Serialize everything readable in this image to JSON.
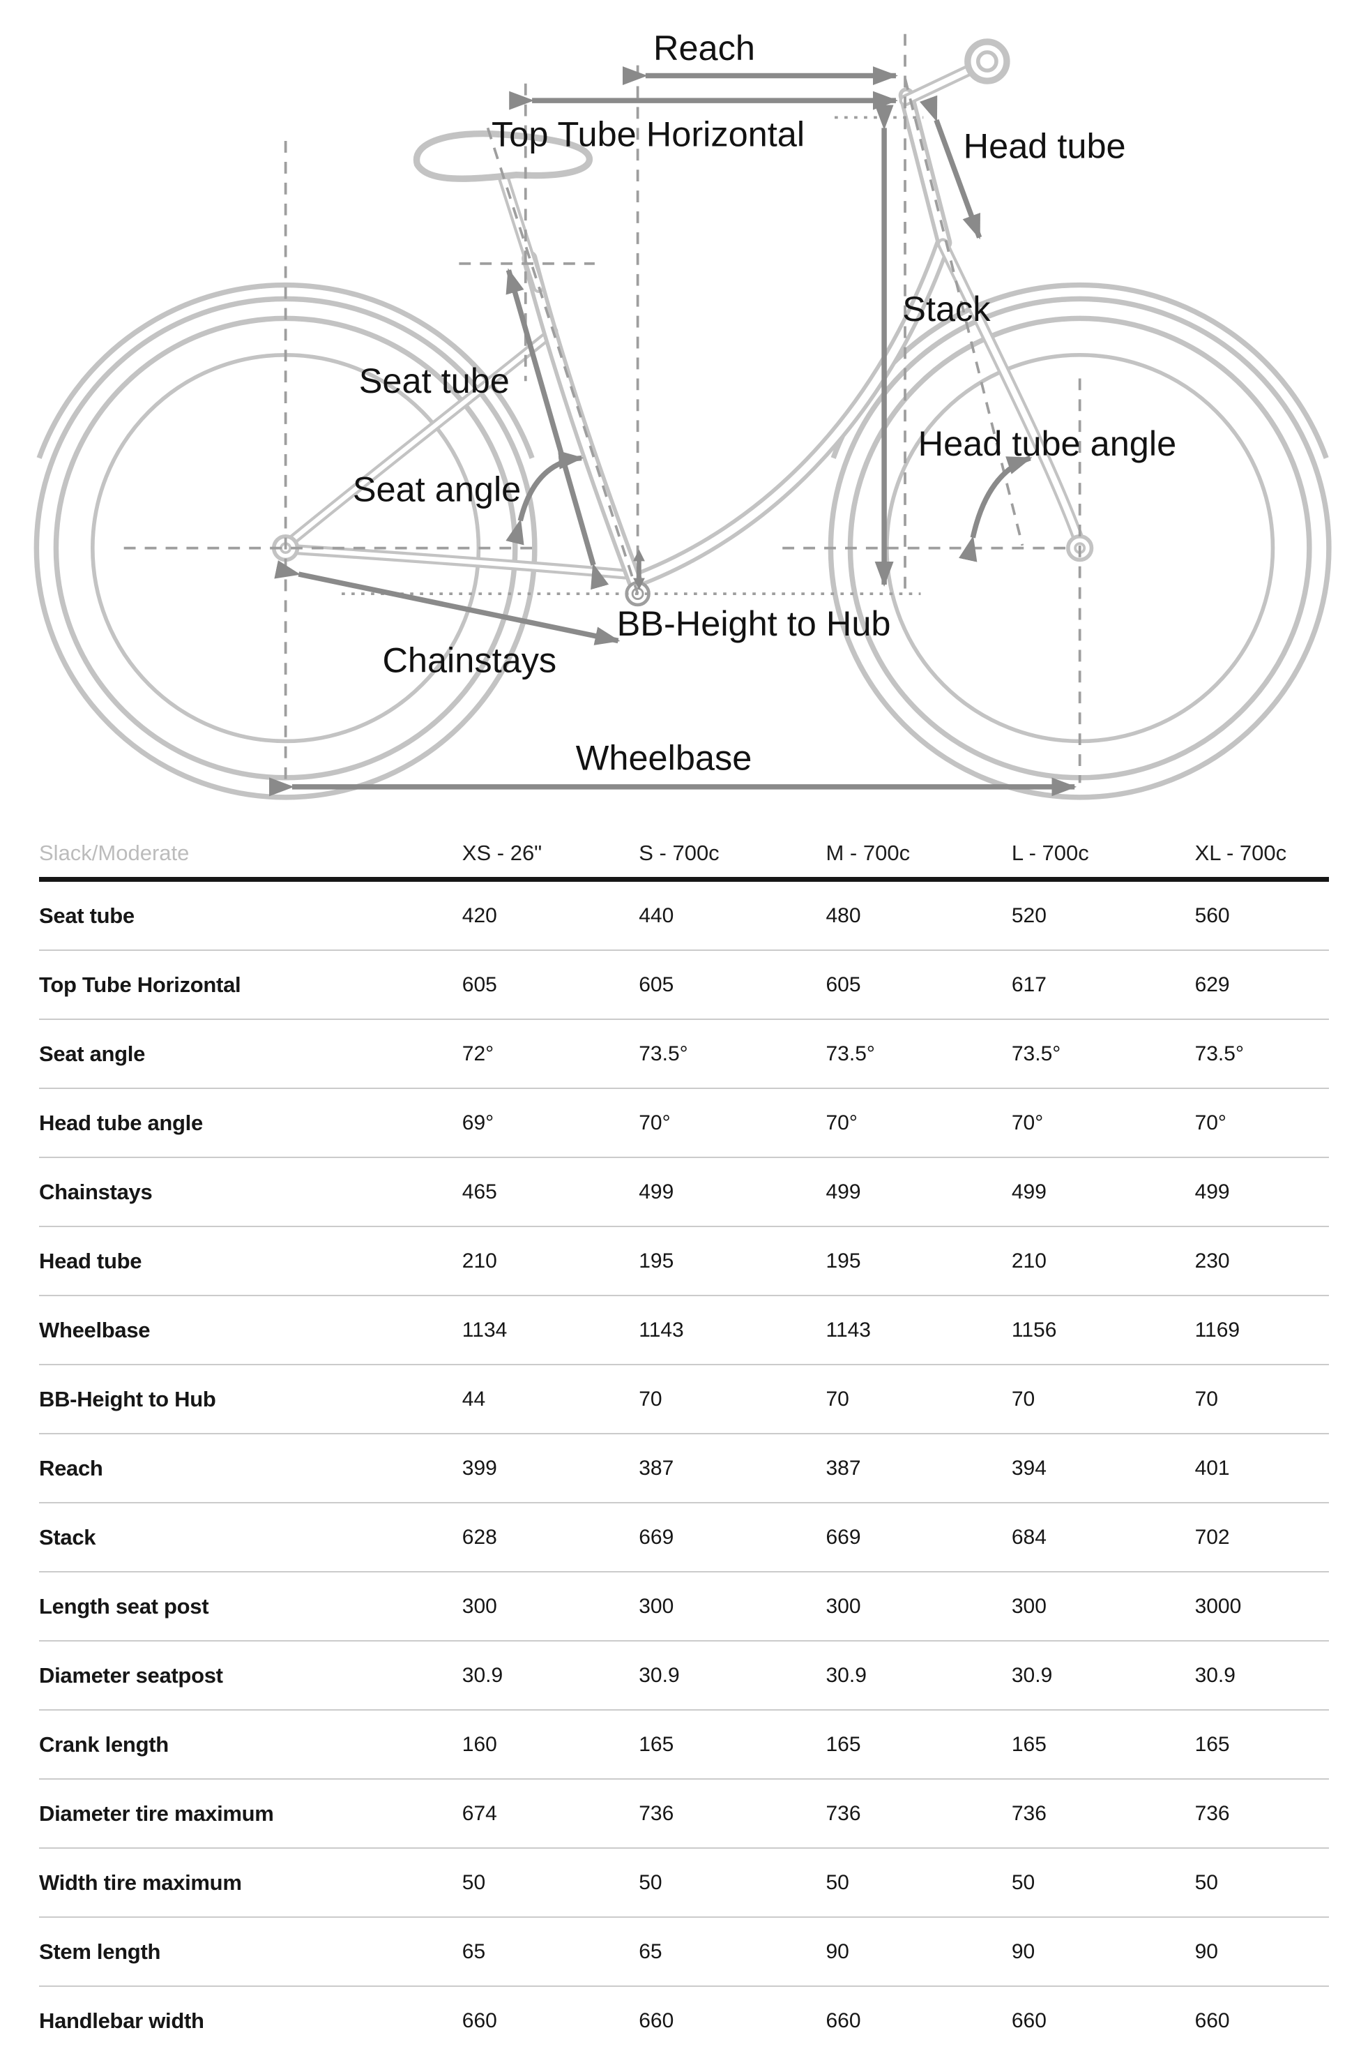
{
  "diagram": {
    "labels": {
      "reach": "Reach",
      "top_tube_horizontal": "Top Tube Horizontal",
      "head_tube": "Head tube",
      "stack": "Stack",
      "seat_tube": "Seat tube",
      "seat_angle": "Seat angle",
      "head_tube_angle": "Head tube angle",
      "bb_height_to_hub": "BB-Height to Hub",
      "chainstays": "Chainstays",
      "wheelbase": "Wheelbase"
    },
    "colors": {
      "frame": "#c3c3c3",
      "arrow": "#8a8a8a",
      "dashed_line": "#9e9e9e",
      "label_text": "#121212"
    }
  },
  "table": {
    "corner_label": "Slack/Moderate",
    "columns": [
      "XS - 26\"",
      "S - 700c",
      "M - 700c",
      "L - 700c",
      "XL - 700c"
    ],
    "rows": [
      {
        "label": "Seat tube",
        "values": [
          "420",
          "440",
          "480",
          "520",
          "560"
        ]
      },
      {
        "label": "Top Tube Horizontal",
        "values": [
          "605",
          "605",
          "605",
          "617",
          "629"
        ]
      },
      {
        "label": "Seat angle",
        "values": [
          "72°",
          "73.5°",
          "73.5°",
          "73.5°",
          "73.5°"
        ]
      },
      {
        "label": "Head tube angle",
        "values": [
          "69°",
          "70°",
          "70°",
          "70°",
          "70°"
        ]
      },
      {
        "label": "Chainstays",
        "values": [
          "465",
          "499",
          "499",
          "499",
          "499"
        ]
      },
      {
        "label": "Head tube",
        "values": [
          "210",
          "195",
          "195",
          "210",
          "230"
        ]
      },
      {
        "label": "Wheelbase",
        "values": [
          "1134",
          "1143",
          "1143",
          "1156",
          "1169"
        ]
      },
      {
        "label": "BB-Height to Hub",
        "values": [
          "44",
          "70",
          "70",
          "70",
          "70"
        ]
      },
      {
        "label": "Reach",
        "values": [
          "399",
          "387",
          "387",
          "394",
          "401"
        ]
      },
      {
        "label": "Stack",
        "values": [
          "628",
          "669",
          "669",
          "684",
          "702"
        ]
      },
      {
        "label": "Length seat post",
        "values": [
          "300",
          "300",
          "300",
          "300",
          "3000"
        ]
      },
      {
        "label": "Diameter seatpost",
        "values": [
          "30.9",
          "30.9",
          "30.9",
          "30.9",
          "30.9"
        ]
      },
      {
        "label": "Crank length",
        "values": [
          "160",
          "165",
          "165",
          "165",
          "165"
        ]
      },
      {
        "label": "Diameter tire maximum",
        "values": [
          "674",
          "736",
          "736",
          "736",
          "736"
        ]
      },
      {
        "label": "Width tire maximum",
        "values": [
          "50",
          "50",
          "50",
          "50",
          "50"
        ]
      },
      {
        "label": "Stem length",
        "values": [
          "65",
          "65",
          "90",
          "90",
          "90"
        ]
      },
      {
        "label": "Handlebar width",
        "values": [
          "660",
          "660",
          "660",
          "660",
          "660"
        ]
      }
    ]
  }
}
